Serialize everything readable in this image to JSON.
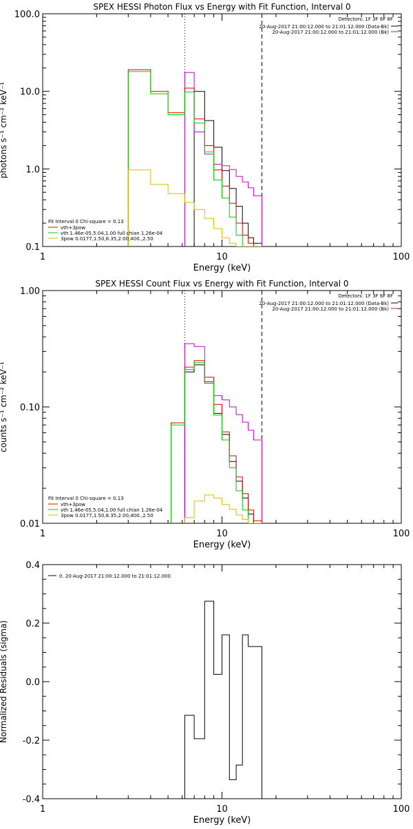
{
  "chart_data": [
    {
      "type": "line",
      "title": "SPEX HESSI Photon Flux vs Energy with Fit Function, Interval 0",
      "xlabel": "Energy (keV)",
      "ylabel": "photons s⁻¹ cm⁻² keV⁻¹",
      "xscale": "log",
      "yscale": "log",
      "xlim": [
        1,
        100
      ],
      "ylim": [
        0.1,
        100
      ],
      "xticklabels": [
        "1",
        "10",
        "100"
      ],
      "yticklabels": [
        "0.1",
        "1.0",
        "10.0",
        "100.0"
      ],
      "grid": false,
      "vlines": [
        {
          "x": 6.2,
          "style": "dotted"
        },
        {
          "x": 16.7,
          "style": "dashed"
        }
      ],
      "legend_top": {
        "placement": "top-right",
        "detectors": "Detectors: 1F 3F 6F 8F",
        "entries": [
          {
            "label": "20-Aug-2017 21:00:12.000 to 21:01:12.000 (Data-Bk)",
            "color": "#000000"
          },
          {
            "label": "20-Aug-2017 21:00:12.000 to 21:01:12.000 (Bk)",
            "color": "#cc00cc"
          }
        ]
      },
      "legend_fit": {
        "placement": "bottom-left",
        "header": "Fit Interval 0   Chi-square = 0.13",
        "entries": [
          {
            "label": "vth+3pow",
            "color": "#dd0000"
          },
          {
            "label": "vth 1.46e-05,5.04,1.00  full chian 1.26e-04",
            "color": "#00cc00"
          },
          {
            "label": "3pow 0.0177,1.50,8.35,2.00,400.,2.50",
            "color": "#ddbb00"
          }
        ]
      },
      "series": [
        {
          "name": "Data-Bk",
          "color": "#000000",
          "edges": [
            6.2,
            7.0,
            8.0,
            9.0,
            10.0,
            11.0,
            12.0,
            13.0,
            14.0,
            15.0,
            16.7
          ],
          "values": [
            0.0,
            10.0,
            4.2,
            1.9,
            0.95,
            0.56,
            0.33,
            0.2,
            0.13,
            0.11
          ]
        },
        {
          "name": "Bk",
          "color": "#cc00cc",
          "edges": [
            6.2,
            7.0,
            8.0,
            9.0,
            10.0,
            11.0,
            12.0,
            13.0,
            14.0,
            15.0,
            16.7
          ],
          "values": [
            17.5,
            3.0,
            1.55,
            1.15,
            1.1,
            0.98,
            0.8,
            0.68,
            0.57,
            0.45
          ]
        },
        {
          "name": "vth+3pow",
          "color": "#dd0000",
          "edges": [
            3.0,
            4.0,
            5.0,
            6.2,
            7.0,
            8.0,
            9.0,
            10.0,
            11.0,
            12.0,
            13.0,
            14.0,
            15.0,
            16.7
          ],
          "values": [
            19.0,
            10.0,
            5.3,
            11.0,
            4.4,
            2.0,
            0.97,
            0.6,
            0.36,
            0.2,
            0.14,
            0.11,
            0.085
          ]
        },
        {
          "name": "vth",
          "color": "#00cc00",
          "edges": [
            3.0,
            4.0,
            5.0,
            6.2,
            7.0,
            8.0,
            9.0,
            10.0,
            11.0,
            12.0,
            13.0,
            14.0,
            15.0,
            16.7
          ],
          "values": [
            18.0,
            9.3,
            5.0,
            9.8,
            3.9,
            1.65,
            0.72,
            0.42,
            0.24,
            0.14,
            0.095,
            0.085,
            0.085
          ]
        },
        {
          "name": "3pow",
          "color": "#ddbb00",
          "edges": [
            3.0,
            4.0,
            5.0,
            6.2,
            7.0,
            8.0,
            9.0,
            10.0,
            11.0,
            12.0,
            13.0,
            14.0,
            15.0,
            16.7
          ],
          "values": [
            0.97,
            0.63,
            0.48,
            0.37,
            0.3,
            0.23,
            0.17,
            0.13,
            0.11,
            0.085,
            0.085,
            0.085,
            0.085
          ]
        }
      ]
    },
    {
      "type": "line",
      "title": "SPEX HESSI Count Flux vs Energy with Fit Function, Interval 0",
      "xlabel": "Energy (keV)",
      "ylabel": "counts s⁻¹ cm⁻² keV⁻¹",
      "xscale": "log",
      "yscale": "log",
      "xlim": [
        1,
        100
      ],
      "ylim": [
        0.01,
        1.0
      ],
      "xticklabels": [
        "1",
        "10",
        "100"
      ],
      "yticklabels": [
        "0.01",
        "0.10",
        "1.00"
      ],
      "grid": false,
      "vlines": [
        {
          "x": 6.2,
          "style": "dotted"
        },
        {
          "x": 16.7,
          "style": "dashed"
        }
      ],
      "legend_top": {
        "placement": "top-right",
        "detectors": "Detectors: 1F 3F 6F 8F",
        "entries": [
          {
            "label": "20-Aug-2017 21:00:12.000 to 21:01:12.000 (Data-Bk)",
            "color": "#000000"
          },
          {
            "label": "20-Aug-2017 21:00:12.000 to 21:01:12.000 (Bk)",
            "color": "#cc00cc"
          }
        ]
      },
      "legend_fit": {
        "placement": "bottom-left",
        "header": "Fit Interval 0   Chi-square = 0.13",
        "entries": [
          {
            "label": "vth+3pow",
            "color": "#dd0000"
          },
          {
            "label": "vth 1.46e-05,5.04,1.00  full chian 1.26e-04",
            "color": "#00cc00"
          },
          {
            "label": "3pow 0.0177,1.50,8.35,2.00,400.,2.50",
            "color": "#ddbb00"
          }
        ]
      },
      "series": [
        {
          "name": "Data-Bk",
          "color": "#000000",
          "edges": [
            6.2,
            7.0,
            8.0,
            9.0,
            10.0,
            11.0,
            12.0,
            13.0,
            14.0,
            15.0,
            16.7
          ],
          "values": [
            0.2,
            0.23,
            0.165,
            0.088,
            0.058,
            0.034,
            0.023,
            0.0165,
            0.012,
            0.0095
          ]
        },
        {
          "name": "Bk",
          "color": "#cc00cc",
          "edges": [
            6.2,
            7.0,
            8.0,
            9.0,
            10.0,
            11.0,
            12.0,
            13.0,
            14.0,
            15.0,
            16.7
          ],
          "values": [
            0.35,
            0.33,
            0.16,
            0.125,
            0.115,
            0.1,
            0.086,
            0.074,
            0.063,
            0.052
          ]
        },
        {
          "name": "vth+3pow",
          "color": "#dd0000",
          "edges": [
            5.2,
            6.2,
            7.0,
            8.0,
            9.0,
            10.0,
            11.0,
            12.0,
            13.0,
            14.0,
            15.0,
            16.7
          ],
          "values": [
            0.073,
            0.22,
            0.25,
            0.18,
            0.105,
            0.061,
            0.038,
            0.025,
            0.018,
            0.013,
            0.0105
          ]
        },
        {
          "name": "vth",
          "color": "#00cc00",
          "edges": [
            5.2,
            6.2,
            7.0,
            8.0,
            9.0,
            10.0,
            11.0,
            12.0,
            13.0,
            14.0,
            15.0,
            16.7
          ],
          "values": [
            0.07,
            0.21,
            0.24,
            0.165,
            0.085,
            0.052,
            0.03,
            0.019,
            0.013,
            0.0095,
            0.0095
          ]
        },
        {
          "name": "3pow",
          "color": "#ddbb00",
          "edges": [
            6.2,
            7.0,
            8.0,
            9.0,
            10.0,
            11.0,
            12.0,
            13.0,
            14.0,
            15.0,
            16.7
          ],
          "values": [
            0.0112,
            0.0155,
            0.0175,
            0.0165,
            0.0145,
            0.0132,
            0.0118,
            0.0108,
            0.0095,
            0.0095
          ]
        }
      ]
    },
    {
      "type": "line",
      "title": "",
      "xlabel": "Energy (keV)",
      "ylabel": "Normalized Residuals (sigma)",
      "xscale": "log",
      "yscale": "linear",
      "xlim": [
        1,
        100
      ],
      "ylim": [
        -0.4,
        0.4
      ],
      "xticklabels": [
        "1",
        "10",
        "100"
      ],
      "yticklabels": [
        "-0.4",
        "-0.2",
        "0.0",
        "0.2",
        "0.4"
      ],
      "grid": false,
      "legend": {
        "placement": "top-left",
        "entries": [
          {
            "label": "0. 20-Aug-2017 21:00:12.000 to 21:01:12.000",
            "color": "#000000"
          }
        ]
      },
      "series": [
        {
          "name": "",
          "color": "#000000",
          "edges": [
            6.2,
            7.0,
            8.0,
            9.0,
            10.0,
            11.0,
            12.0,
            13.0,
            14.0,
            15.0,
            16.7
          ],
          "values": [
            -0.115,
            -0.195,
            0.275,
            0.025,
            0.16,
            -0.335,
            -0.285,
            0.16,
            0.12,
            0.12
          ]
        }
      ]
    }
  ]
}
